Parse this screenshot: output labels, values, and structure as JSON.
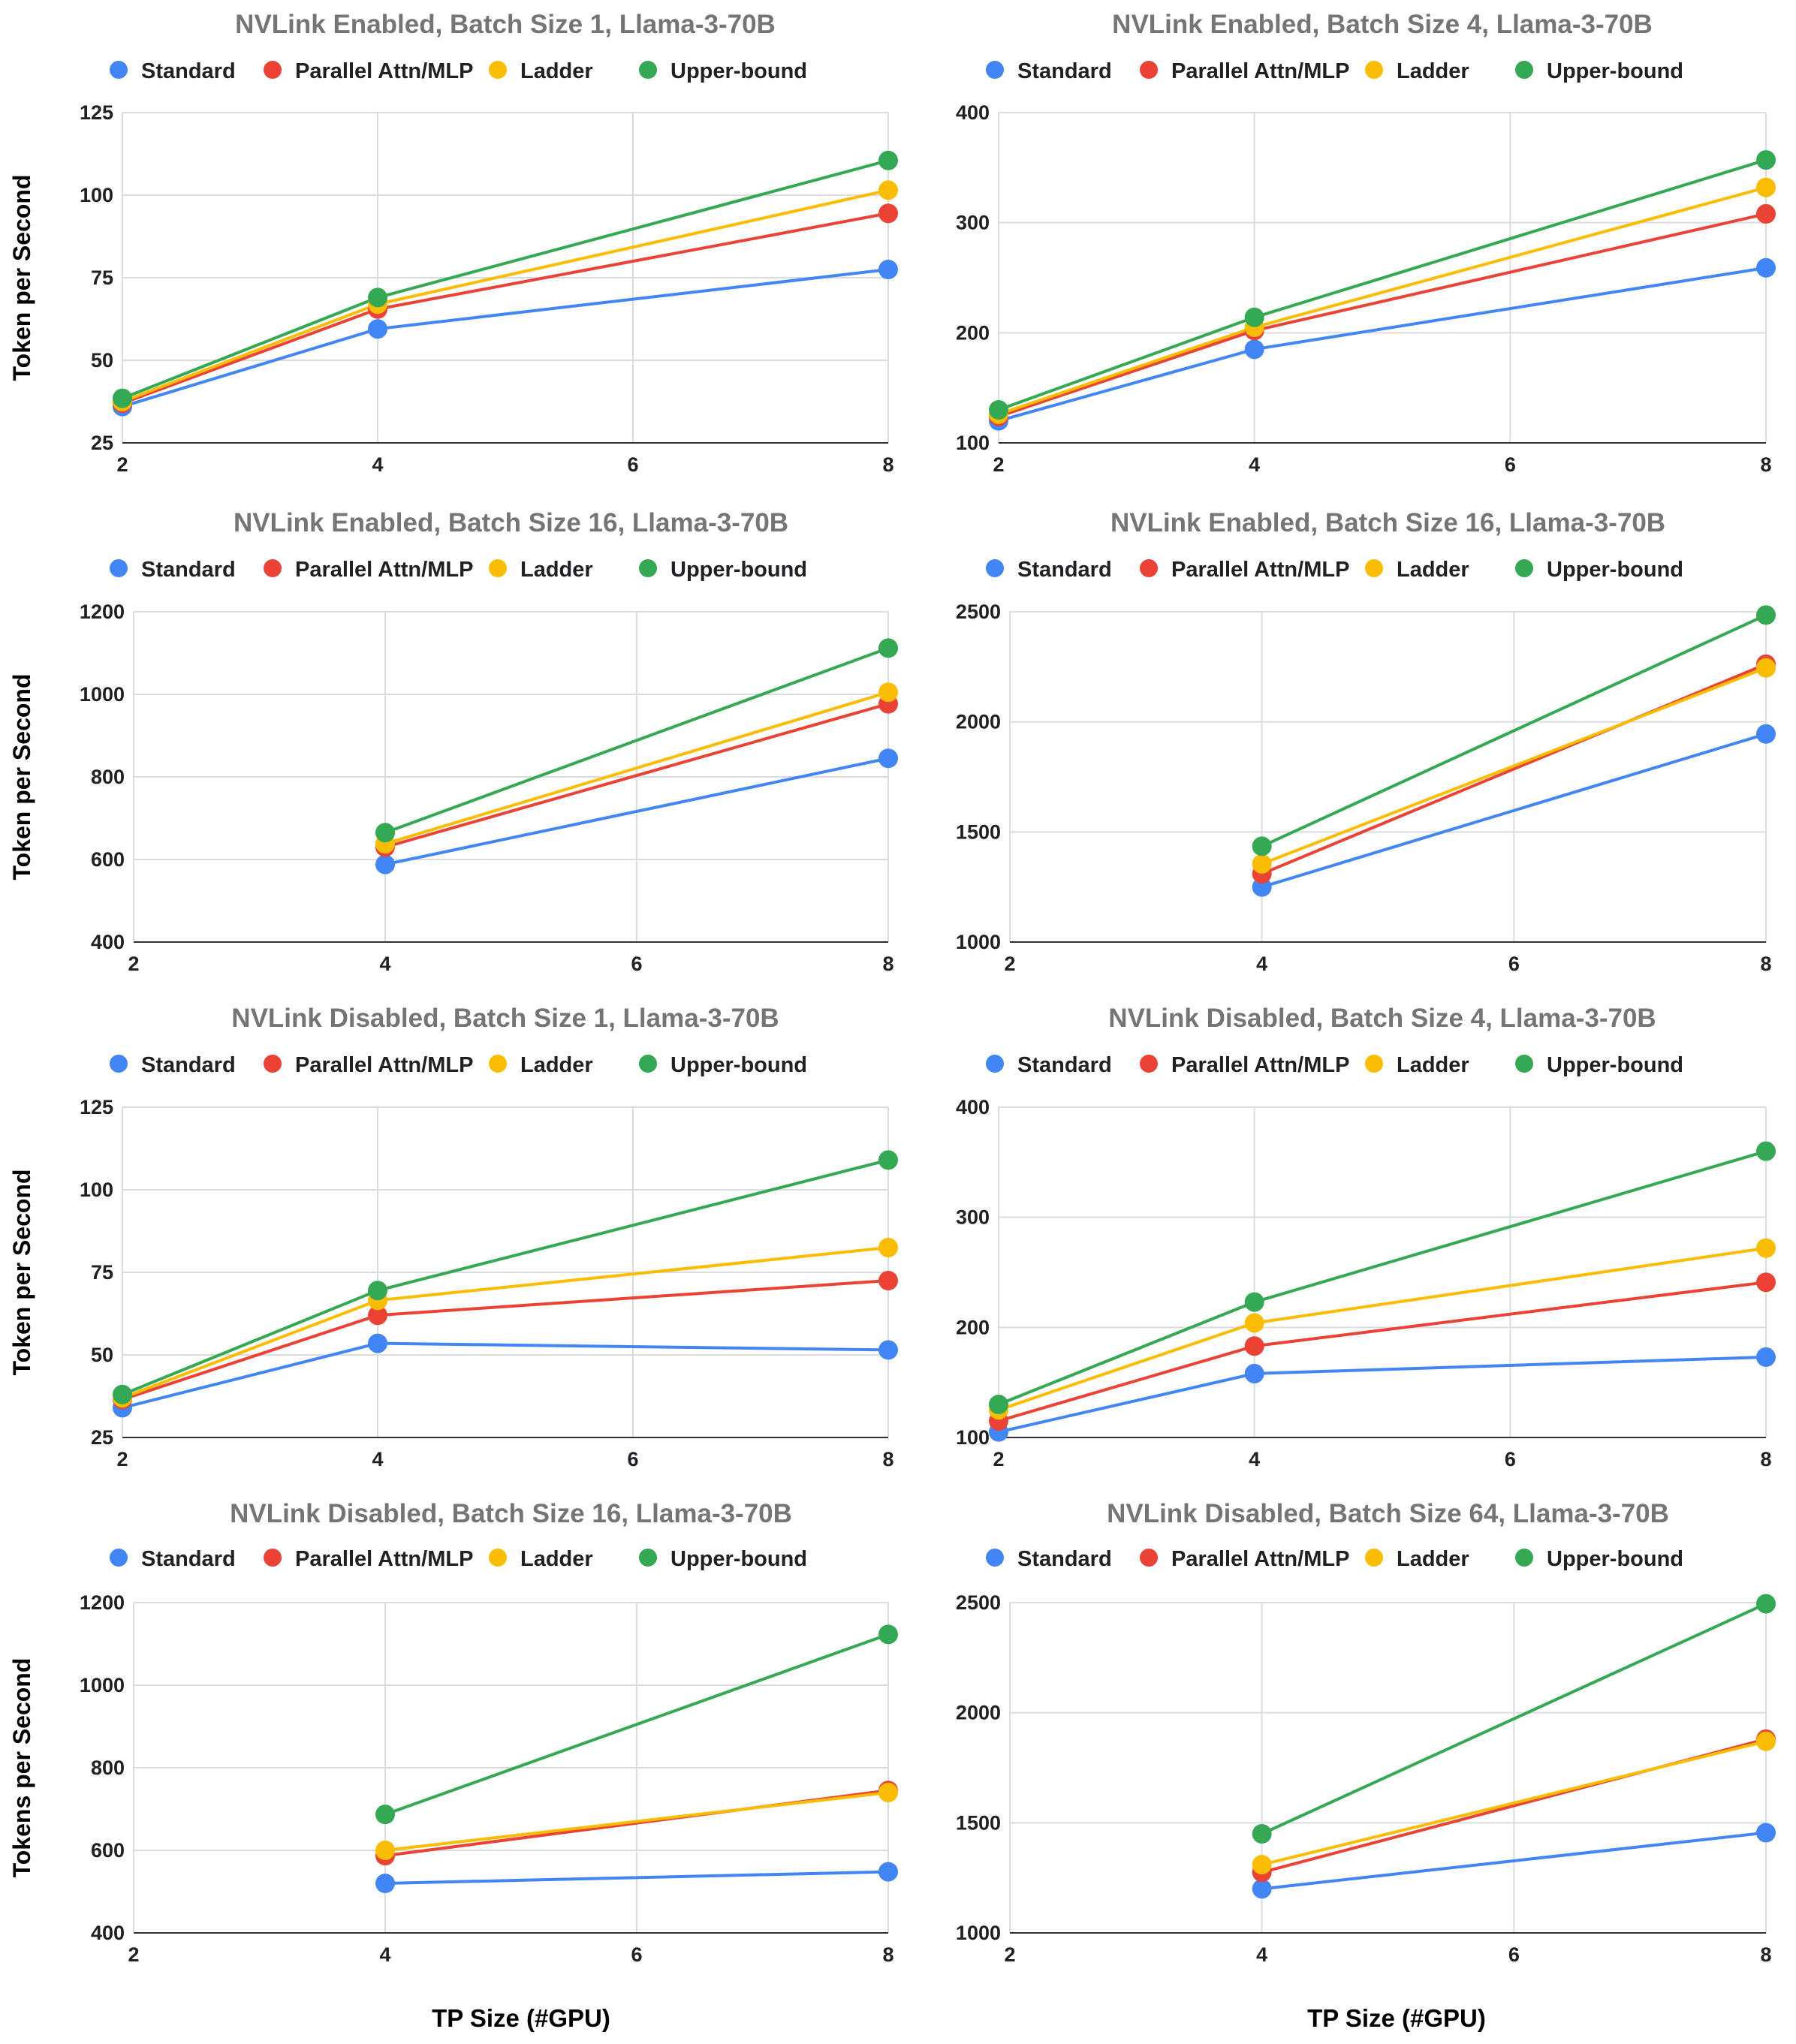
{
  "colors": {
    "Standard": "#4285F4",
    "Parallel Attn/MLP": "#EA4335",
    "Ladder": "#FBBC04",
    "Upper-bound": "#34A853"
  },
  "legend": [
    "Standard",
    "Parallel Attn/MLP",
    "Ladder",
    "Upper-bound"
  ],
  "x_axis_title": "TP Size (#GPU)",
  "chart_data": [
    {
      "type": "line",
      "title": "NVLink Enabled, Batch Size 1, Llama-3-70B",
      "ylabel": "Token per Second",
      "x": [
        2,
        4,
        8
      ],
      "xticks": [
        2,
        4,
        6,
        8
      ],
      "ylim": [
        25,
        125
      ],
      "yticks": [
        25,
        50,
        75,
        100,
        125
      ],
      "series": [
        {
          "name": "Standard",
          "values": [
            36,
            59.5,
            77.5
          ]
        },
        {
          "name": "Parallel Attn/MLP",
          "values": [
            37,
            65.5,
            94.5
          ]
        },
        {
          "name": "Ladder",
          "values": [
            37.5,
            67,
            101.5
          ]
        },
        {
          "name": "Upper-bound",
          "values": [
            38.5,
            69,
            110.5
          ]
        }
      ]
    },
    {
      "type": "line",
      "title": "NVLink Enabled, Batch Size 4, Llama-3-70B",
      "ylabel": "",
      "x": [
        2,
        4,
        8
      ],
      "xticks": [
        2,
        4,
        6,
        8
      ],
      "ylim": [
        100,
        400
      ],
      "yticks": [
        100,
        200,
        300,
        400
      ],
      "series": [
        {
          "name": "Standard",
          "values": [
            120,
            185,
            259
          ]
        },
        {
          "name": "Parallel Attn/MLP",
          "values": [
            124,
            202,
            308
          ]
        },
        {
          "name": "Ladder",
          "values": [
            126,
            205,
            332
          ]
        },
        {
          "name": "Upper-bound",
          "values": [
            130,
            214,
            357
          ]
        }
      ]
    },
    {
      "type": "line",
      "title": "NVLink Enabled, Batch Size 16, Llama-3-70B",
      "ylabel": "Token per Second",
      "x": [
        4,
        8
      ],
      "xticks": [
        2,
        4,
        6,
        8
      ],
      "ylim": [
        400,
        1200
      ],
      "yticks": [
        400,
        600,
        800,
        1000,
        1200
      ],
      "series": [
        {
          "name": "Standard",
          "values": [
            588,
            845
          ]
        },
        {
          "name": "Parallel Attn/MLP",
          "values": [
            630,
            977
          ]
        },
        {
          "name": "Ladder",
          "values": [
            638,
            1005
          ]
        },
        {
          "name": "Upper-bound",
          "values": [
            665,
            1112
          ]
        }
      ]
    },
    {
      "type": "line",
      "title": "NVLink Enabled, Batch Size 16, Llama-3-70B",
      "ylabel": "",
      "x": [
        4,
        8
      ],
      "xticks": [
        2,
        4,
        6,
        8
      ],
      "ylim": [
        1000,
        2500
      ],
      "yticks": [
        1000,
        1500,
        2000,
        2500
      ],
      "series": [
        {
          "name": "Standard",
          "values": [
            1250,
            1945
          ]
        },
        {
          "name": "Parallel Attn/MLP",
          "values": [
            1310,
            2262
          ]
        },
        {
          "name": "Ladder",
          "values": [
            1355,
            2245
          ]
        },
        {
          "name": "Upper-bound",
          "values": [
            1435,
            2485
          ]
        }
      ]
    },
    {
      "type": "line",
      "title": "NVLink Disabled, Batch Size 1, Llama-3-70B",
      "ylabel": "Token per Second",
      "x": [
        2,
        4,
        8
      ],
      "xticks": [
        2,
        4,
        6,
        8
      ],
      "ylim": [
        25,
        125
      ],
      "yticks": [
        25,
        50,
        75,
        100,
        125
      ],
      "series": [
        {
          "name": "Standard",
          "values": [
            34,
            53.5,
            51.5
          ]
        },
        {
          "name": "Parallel Attn/MLP",
          "values": [
            36.5,
            62,
            72.5
          ]
        },
        {
          "name": "Ladder",
          "values": [
            37,
            66.5,
            82.5
          ]
        },
        {
          "name": "Upper-bound",
          "values": [
            38,
            69.5,
            109
          ]
        }
      ]
    },
    {
      "type": "line",
      "title": "NVLink Disabled, Batch Size 4, Llama-3-70B",
      "ylabel": "",
      "x": [
        2,
        4,
        8
      ],
      "xticks": [
        2,
        4,
        6,
        8
      ],
      "ylim": [
        100,
        400
      ],
      "yticks": [
        100,
        200,
        300,
        400
      ],
      "series": [
        {
          "name": "Standard",
          "values": [
            105,
            158,
            173
          ]
        },
        {
          "name": "Parallel Attn/MLP",
          "values": [
            115,
            183,
            241
          ]
        },
        {
          "name": "Ladder",
          "values": [
            125,
            204,
            272
          ]
        },
        {
          "name": "Upper-bound",
          "values": [
            130,
            223,
            360
          ]
        }
      ]
    },
    {
      "type": "line",
      "title": "NVLink Disabled, Batch Size 16, Llama-3-70B",
      "ylabel": "Tokens per Second",
      "x": [
        4,
        8
      ],
      "xticks": [
        2,
        4,
        6,
        8
      ],
      "ylim": [
        400,
        1200
      ],
      "yticks": [
        400,
        600,
        800,
        1000,
        1200
      ],
      "series": [
        {
          "name": "Standard",
          "values": [
            520,
            548
          ]
        },
        {
          "name": "Parallel Attn/MLP",
          "values": [
            587,
            745
          ]
        },
        {
          "name": "Ladder",
          "values": [
            600,
            740
          ]
        },
        {
          "name": "Upper-bound",
          "values": [
            687,
            1123
          ]
        }
      ]
    },
    {
      "type": "line",
      "title": "NVLink Disabled, Batch Size 64, Llama-3-70B",
      "ylabel": "",
      "x": [
        4,
        8
      ],
      "xticks": [
        2,
        4,
        6,
        8
      ],
      "ylim": [
        1000,
        2500
      ],
      "yticks": [
        1000,
        1500,
        2000,
        2500
      ],
      "series": [
        {
          "name": "Standard",
          "values": [
            1200,
            1455
          ]
        },
        {
          "name": "Parallel Attn/MLP",
          "values": [
            1275,
            1880
          ]
        },
        {
          "name": "Ladder",
          "values": [
            1310,
            1870
          ]
        },
        {
          "name": "Upper-bound",
          "values": [
            1450,
            2495
          ]
        }
      ]
    }
  ]
}
